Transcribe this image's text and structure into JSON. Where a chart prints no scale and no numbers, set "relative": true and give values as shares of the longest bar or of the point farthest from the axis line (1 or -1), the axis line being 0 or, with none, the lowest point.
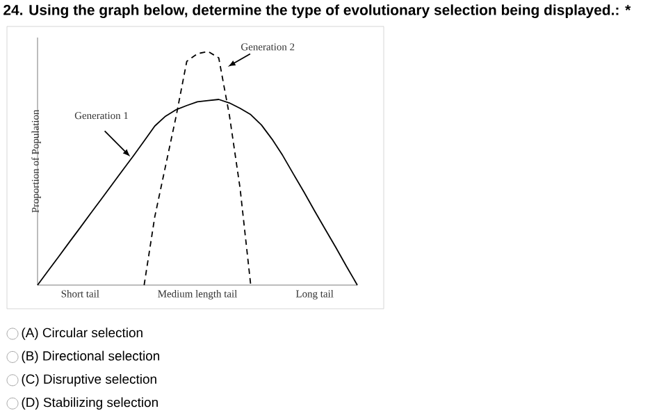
{
  "chart_data": {
    "type": "line",
    "relative": true,
    "title": "24. Using the graph below, determine the type of evolutionary selection being displayed.: *",
    "ylabel": "Proportion of Population",
    "categories": [
      null,
      null,
      null,
      null,
      "Short tail",
      null,
      null,
      null,
      null,
      null,
      null,
      null,
      null,
      null,
      null,
      "Medium length tail",
      null,
      null,
      null,
      null,
      null,
      null,
      null,
      null,
      null,
      null,
      "Long tail",
      null,
      null,
      null,
      null
    ],
    "legend": false,
    "series": [
      {
        "name": "Generation 1",
        "color": "#000000",
        "line_style": "solid",
        "values": [
          0,
          0.062,
          0.123,
          0.185,
          0.246,
          0.308,
          0.369,
          0.431,
          0.493,
          0.554,
          0.617,
          0.681,
          0.723,
          0.751,
          0.769,
          0.785,
          0.79,
          0.795,
          0.78,
          0.757,
          0.73,
          0.686,
          0.625,
          0.555,
          0.476,
          0.398,
          0.317,
          0.238,
          0.16,
          0.079,
          0
        ]
      },
      {
        "name": "Generation 2",
        "color": "#000000",
        "line_style": "dashed",
        "values": [
          null,
          null,
          null,
          null,
          null,
          null,
          null,
          null,
          null,
          null,
          0,
          0.293,
          0.508,
          0.723,
          0.958,
          0.991,
          1,
          0.973,
          0.727,
          0.415,
          0,
          null,
          null,
          null,
          null,
          null,
          null,
          null,
          null,
          null,
          null
        ]
      }
    ],
    "annotations": [
      "(A) Circular selection",
      "(B) Directional selection",
      "(C) Disruptive selection",
      "(D) Stabilizing selection"
    ]
  }
}
